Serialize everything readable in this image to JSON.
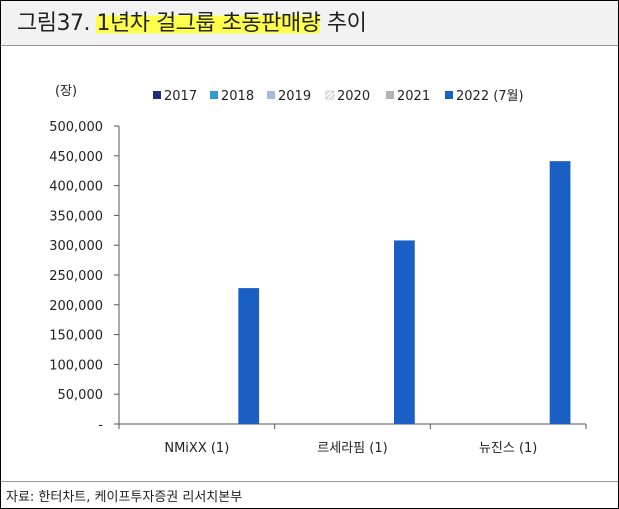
{
  "header": {
    "prefix": "그림37.",
    "highlighted_title": "1년차 걸그룹 초동판매량",
    "suffix": "추이"
  },
  "footer": {
    "source": "자료: 한터차트, 케이프투자증권 리서치본부"
  },
  "chart_data": {
    "type": "bar",
    "ylabel": "(장)",
    "ylim": [
      0,
      500000
    ],
    "yticks": [
      "-",
      "50,000",
      "100,000",
      "150,000",
      "200,000",
      "250,000",
      "300,000",
      "350,000",
      "400,000",
      "450,000",
      "500,000"
    ],
    "categories": [
      "NMiXX (1)",
      "르세라핌 (1)",
      "뉴진스 (1)"
    ],
    "legend_position": "top",
    "grid": false,
    "series": [
      {
        "name": "2017",
        "color": "#1f2e7a",
        "values": [
          null,
          null,
          null
        ]
      },
      {
        "name": "2018",
        "color": "#2e9bd6",
        "values": [
          null,
          null,
          null
        ]
      },
      {
        "name": "2019",
        "color": "#a9b8e0",
        "values": [
          null,
          null,
          null
        ]
      },
      {
        "name": "2020",
        "color": "#ffffff",
        "pattern": "hatched",
        "values": [
          null,
          null,
          null
        ]
      },
      {
        "name": "2021",
        "color": "#b3b3b3",
        "values": [
          null,
          null,
          null
        ]
      },
      {
        "name": "2022 (7월)",
        "color": "#1a5fc4",
        "values": [
          228000,
          308000,
          441000
        ]
      }
    ]
  }
}
